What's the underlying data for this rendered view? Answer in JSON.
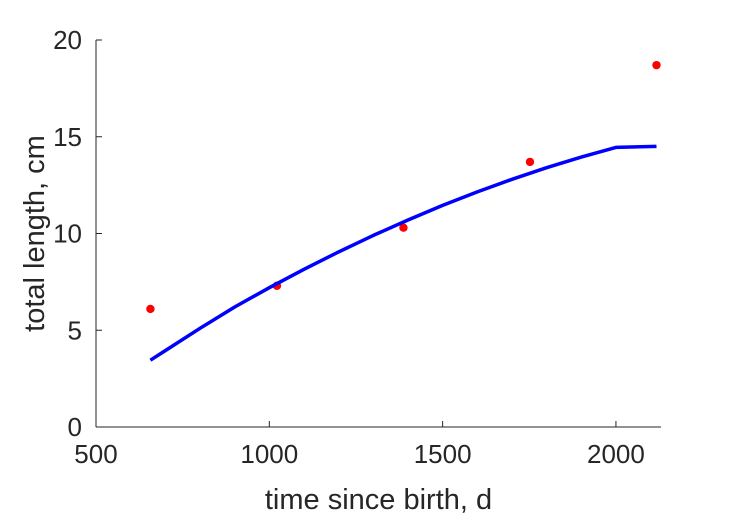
{
  "chart_data": {
    "type": "scatter",
    "title": "",
    "xlabel": "time since birth, d",
    "ylabel": "total length, cm",
    "xlim": [
      500,
      2130
    ],
    "ylim": [
      0,
      20
    ],
    "xticks": [
      500,
      1000,
      1500,
      2000
    ],
    "yticks": [
      0,
      5,
      10,
      15,
      20
    ],
    "xtick_labels": [
      "500",
      "1000",
      "1500",
      "2000"
    ],
    "ytick_labels": [
      "0",
      "5",
      "10",
      "15",
      "20"
    ],
    "grid": false,
    "series": [
      {
        "kind": "points",
        "color": "#ff0000",
        "x": [
          657,
          1022,
          1387,
          1752,
          2117
        ],
        "y": [
          6.1,
          7.3,
          10.3,
          13.7,
          18.7
        ]
      },
      {
        "kind": "line",
        "color": "#0000ff",
        "x": [
          657,
          700,
          800,
          900,
          1000,
          1100,
          1200,
          1300,
          1400,
          1500,
          1600,
          1700,
          1800,
          1900,
          2000,
          2117
        ],
        "y": [
          3.45,
          3.95,
          5.1,
          6.2,
          7.2,
          8.15,
          9.05,
          9.9,
          10.7,
          11.45,
          12.15,
          12.8,
          13.4,
          13.95,
          14.45,
          14.5
        ]
      }
    ]
  }
}
